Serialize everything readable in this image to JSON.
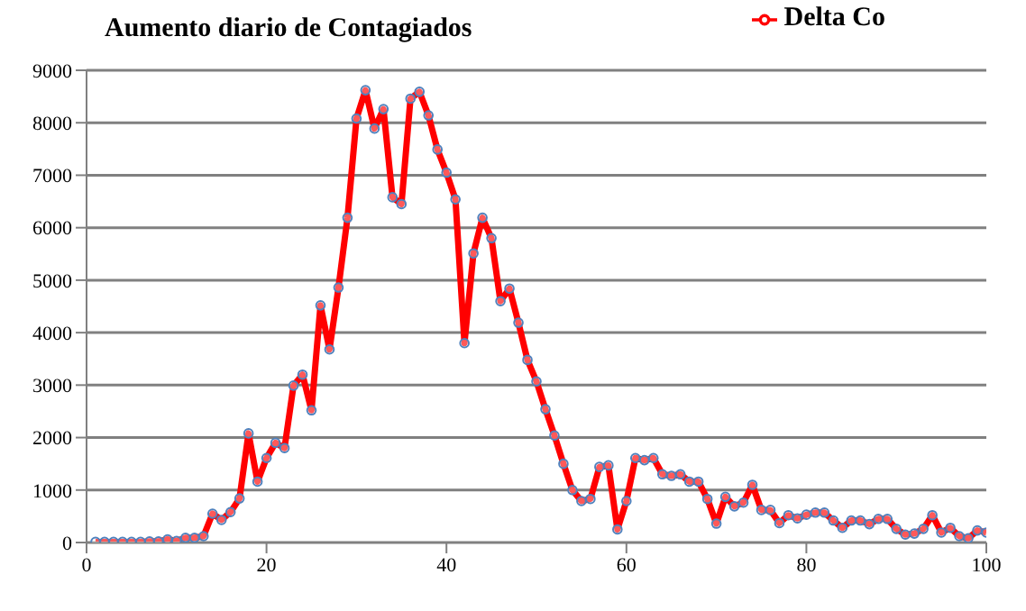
{
  "chart_data": {
    "type": "line",
    "title": "Aumento diario de Contagiados",
    "x": [
      1,
      2,
      3,
      4,
      5,
      6,
      7,
      8,
      9,
      10,
      11,
      12,
      13,
      14,
      15,
      16,
      17,
      18,
      19,
      20,
      21,
      22,
      23,
      24,
      25,
      26,
      27,
      28,
      29,
      30,
      31,
      32,
      33,
      34,
      35,
      36,
      37,
      38,
      39,
      40,
      41,
      42,
      43,
      44,
      45,
      46,
      47,
      48,
      49,
      50,
      51,
      52,
      53,
      54,
      55,
      56,
      57,
      58,
      59,
      60,
      61,
      62,
      63,
      64,
      65,
      66,
      67,
      68,
      69,
      70,
      71,
      72,
      73,
      74,
      75,
      76,
      77,
      78,
      79,
      80,
      81,
      82,
      83,
      84,
      85,
      86,
      87,
      88,
      89,
      90,
      91,
      92,
      93,
      94,
      95,
      96,
      97,
      98,
      99,
      100
    ],
    "series": [
      {
        "name": "Delta Co",
        "color": "#ff0000",
        "values": [
          10,
          10,
          10,
          10,
          10,
          10,
          20,
          20,
          60,
          30,
          90,
          90,
          120,
          550,
          430,
          580,
          840,
          2080,
          1160,
          1610,
          1900,
          1800,
          2990,
          3200,
          2520,
          4520,
          3680,
          4860,
          6190,
          8080,
          8620,
          7890,
          8260,
          6580,
          6450,
          8460,
          8590,
          8140,
          7490,
          7050,
          6540,
          3800,
          5510,
          6190,
          5800,
          4600,
          4840,
          4190,
          3480,
          3070,
          2540,
          2040,
          1500,
          1000,
          790,
          830,
          1440,
          1470,
          250,
          790,
          1610,
          1570,
          1610,
          1300,
          1270,
          1300,
          1160,
          1160,
          830,
          360,
          870,
          690,
          760,
          1100,
          620,
          620,
          370,
          520,
          460,
          530,
          570,
          570,
          420,
          280,
          420,
          420,
          350,
          450,
          450,
          260,
          150,
          170,
          260,
          520,
          190,
          280,
          120,
          80,
          230,
          190
        ]
      }
    ],
    "xlim": [
      0,
      100
    ],
    "xticks": [
      0,
      20,
      40,
      60,
      80,
      100
    ],
    "ylim": [
      0,
      9000
    ],
    "yticks": [
      0,
      1000,
      2000,
      3000,
      4000,
      5000,
      6000,
      7000,
      8000,
      9000
    ],
    "grid": "y",
    "legend": "top right",
    "marker": "circle",
    "line_style": "solid"
  }
}
